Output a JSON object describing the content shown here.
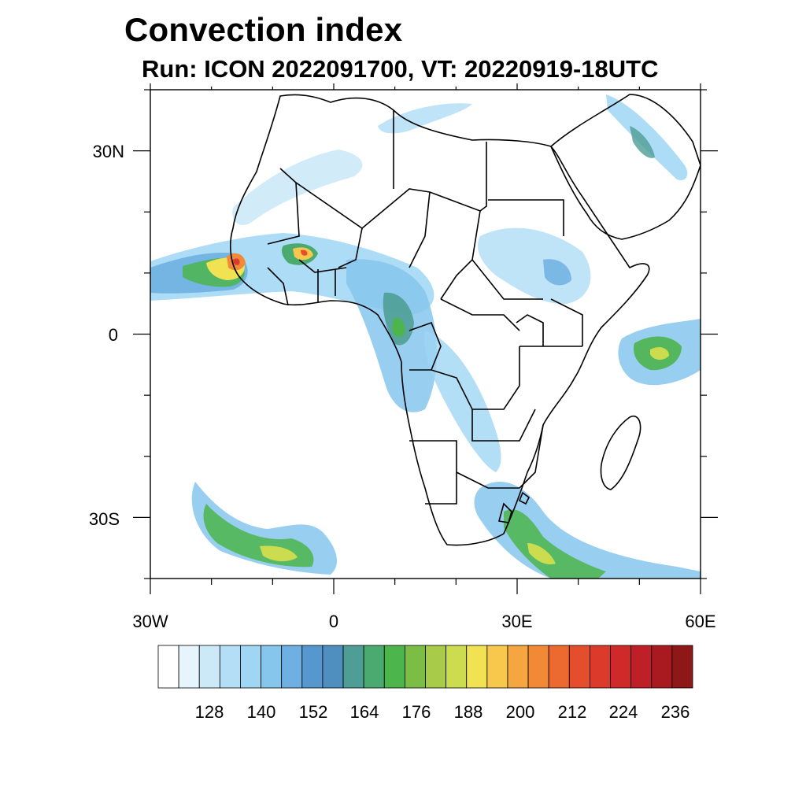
{
  "title": "Convection index",
  "subtitle": "Run: ICON 2022091700,  VT: 20220919-18UTC",
  "map": {
    "region": "Africa",
    "lon_range": [
      -30,
      60
    ],
    "lat_range": [
      -40,
      40
    ],
    "lon_ticks": [
      {
        "value": -30,
        "label": "30W"
      },
      {
        "value": 0,
        "label": "0"
      },
      {
        "value": 30,
        "label": "30E"
      },
      {
        "value": 60,
        "label": "60E"
      }
    ],
    "lat_ticks": [
      {
        "value": 30,
        "label": "30N"
      },
      {
        "value": 0,
        "label": "0"
      },
      {
        "value": -30,
        "label": "30S"
      }
    ]
  },
  "colorbar": {
    "tick_labels": [
      "128",
      "140",
      "152",
      "164",
      "176",
      "188",
      "200",
      "212",
      "224",
      "236"
    ],
    "colors": [
      "#ffffff",
      "#e6f4fc",
      "#cce9f8",
      "#b4def6",
      "#9fd6f4",
      "#86c6ec",
      "#6fb0e2",
      "#5697cf",
      "#4f8fc0",
      "#4f9e96",
      "#4aaa70",
      "#4cb54c",
      "#7bbd45",
      "#a8cc4a",
      "#ccdc4f",
      "#f0e253",
      "#f7c84b",
      "#f6a641",
      "#f28937",
      "#ec6930",
      "#e44e2c",
      "#dc3a2b",
      "#cf2929",
      "#bf1f26",
      "#a81a20",
      "#8e1818"
    ]
  }
}
